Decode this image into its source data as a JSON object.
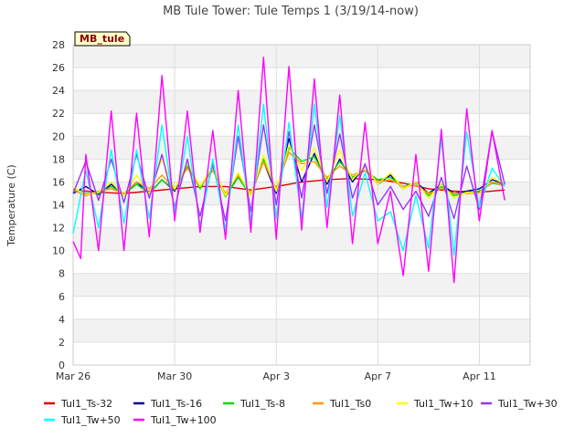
{
  "chart_data": {
    "type": "line",
    "title": "MB Tule Tower: Tule Temps 1 (3/19/14-now)",
    "xlabel": "",
    "ylabel": "Temperature (C)",
    "badge": "MB_tule",
    "x_range": [
      "2014-03-26",
      "2014-04-13"
    ],
    "x_ticks": [
      {
        "label": "Mar 26",
        "day": 0
      },
      {
        "label": "Mar 30",
        "day": 4
      },
      {
        "label": "Apr 3",
        "day": 8
      },
      {
        "label": "Apr 7",
        "day": 12
      },
      {
        "label": "Apr 11",
        "day": 16
      }
    ],
    "ylim": [
      0,
      28
    ],
    "y_ticks": [
      0,
      2,
      4,
      6,
      8,
      10,
      12,
      14,
      16,
      18,
      20,
      22,
      24,
      26,
      28
    ],
    "grid": true,
    "legend_position": "bottom",
    "series": [
      {
        "name": "Tul1_Ts-32",
        "color": "#dd0000",
        "x": [
          0,
          1,
          2,
          3,
          4,
          5,
          6,
          7,
          8,
          9,
          10,
          11,
          12,
          13,
          14,
          15,
          16,
          17
        ],
        "values": [
          15.3,
          15.1,
          15.0,
          15.2,
          15.4,
          15.6,
          15.6,
          15.3,
          15.6,
          16.0,
          16.2,
          16.3,
          16.2,
          15.9,
          15.4,
          15.2,
          15.1,
          15.3
        ]
      },
      {
        "name": "Tul1_Ts-16",
        "color": "#000099",
        "x": [
          0,
          0.5,
          1,
          1.5,
          2,
          2.5,
          3,
          3.5,
          4,
          4.5,
          5,
          5.5,
          6,
          6.5,
          7,
          7.5,
          8,
          8.5,
          9,
          9.5,
          10,
          10.5,
          11,
          11.5,
          12,
          12.5,
          13,
          13.5,
          14,
          14.5,
          15,
          15.5,
          16,
          16.5,
          17
        ],
        "values": [
          15.0,
          15.6,
          14.9,
          15.8,
          14.9,
          16.0,
          15.0,
          16.2,
          15.2,
          17.4,
          15.5,
          17.3,
          14.8,
          16.6,
          14.9,
          17.8,
          15.0,
          19.8,
          16.0,
          18.5,
          15.8,
          18.0,
          16.0,
          17.4,
          15.8,
          16.6,
          15.4,
          16.0,
          15.0,
          15.8,
          15.0,
          15.2,
          15.4,
          16.2,
          15.8
        ]
      },
      {
        "name": "Tul1_Ts-8",
        "color": "#00dd00",
        "x": [
          0,
          0.5,
          1,
          1.5,
          2,
          2.5,
          3,
          3.5,
          4,
          4.5,
          5,
          5.5,
          6,
          6.5,
          7,
          7.5,
          8,
          8.5,
          9,
          9.5,
          10,
          10.5,
          11,
          11.5,
          12,
          12.5,
          13,
          13.5,
          14,
          14.5,
          15,
          15.5,
          16,
          16.5,
          17
        ],
        "values": [
          15.4,
          15.0,
          15.0,
          15.6,
          14.9,
          15.8,
          15.0,
          16.2,
          15.3,
          17.4,
          15.4,
          17.3,
          14.7,
          16.4,
          14.8,
          18.0,
          15.2,
          19.0,
          17.8,
          18.2,
          16.2,
          17.8,
          16.4,
          17.0,
          16.2,
          16.4,
          15.6,
          15.9,
          14.8,
          15.6,
          14.8,
          15.1,
          15.2,
          15.9,
          15.7
        ]
      },
      {
        "name": "Tul1_Ts0",
        "color": "#ff9900",
        "x": [
          0,
          0.5,
          1,
          1.5,
          2,
          2.5,
          3,
          3.5,
          4,
          4.5,
          5,
          5.5,
          6,
          6.5,
          7,
          7.5,
          8,
          8.5,
          9,
          9.5,
          10,
          10.5,
          11,
          11.5,
          12,
          12.5,
          13,
          13.5,
          14,
          14.5,
          15,
          15.5,
          16,
          16.5,
          17
        ],
        "values": [
          15.3,
          14.8,
          15.2,
          15.4,
          15.0,
          16.0,
          15.4,
          16.6,
          15.4,
          17.2,
          15.6,
          17.0,
          15.0,
          16.6,
          15.0,
          17.8,
          15.4,
          18.6,
          17.6,
          17.8,
          16.4,
          17.4,
          16.6,
          17.0,
          16.0,
          16.2,
          15.6,
          15.7,
          15.0,
          15.4,
          15.0,
          15.0,
          15.0,
          16.0,
          15.7
        ]
      },
      {
        "name": "Tul1_Tw+10",
        "color": "#ffff00",
        "x": [
          0,
          0.5,
          1,
          1.5,
          2,
          2.5,
          3,
          3.5,
          4,
          4.5,
          5,
          5.5,
          6,
          6.5,
          7,
          7.5,
          8,
          8.5,
          9,
          9.5,
          10,
          10.5,
          11,
          11.5,
          12,
          12.5,
          13,
          13.5,
          14,
          14.5,
          15,
          15.5,
          16,
          16.5,
          17
        ],
        "values": [
          15.5,
          14.9,
          15.1,
          16.0,
          14.8,
          16.6,
          15.0,
          18.0,
          15.4,
          17.6,
          15.6,
          17.4,
          14.8,
          16.8,
          14.8,
          18.4,
          15.2,
          19.2,
          17.0,
          19.0,
          16.0,
          18.8,
          16.2,
          17.4,
          15.8,
          16.8,
          15.4,
          16.0,
          14.6,
          15.8,
          14.6,
          15.1,
          15.0,
          16.4,
          15.8
        ]
      },
      {
        "name": "Tul1_Tw+30",
        "color": "#9933ff",
        "x": [
          0,
          0.5,
          1,
          1.5,
          2,
          2.5,
          3,
          3.5,
          4,
          4.5,
          5,
          5.5,
          6,
          6.5,
          7,
          7.5,
          8,
          8.5,
          9,
          9.5,
          10,
          10.5,
          11,
          11.5,
          12,
          12.5,
          13,
          13.5,
          14,
          14.5,
          15,
          15.5,
          16,
          16.5,
          17
        ],
        "values": [
          15.0,
          17.8,
          14.4,
          18.0,
          14.2,
          18.4,
          14.6,
          18.4,
          13.8,
          18.0,
          13.0,
          17.6,
          12.6,
          20.0,
          13.4,
          21.0,
          14.0,
          20.4,
          14.6,
          21.0,
          15.0,
          20.2,
          14.6,
          17.6,
          14.0,
          15.6,
          13.6,
          15.2,
          13.0,
          16.4,
          12.8,
          17.4,
          13.6,
          20.4,
          15.8
        ]
      },
      {
        "name": "Tul1_Tw+50",
        "color": "#00ffff",
        "x": [
          0,
          0.5,
          1,
          1.5,
          2,
          2.5,
          3,
          3.5,
          4,
          4.5,
          5,
          5.5,
          6,
          6.5,
          7,
          7.5,
          8,
          8.5,
          9,
          9.5,
          10,
          10.5,
          11,
          11.5,
          12,
          12.5,
          13,
          13.5,
          14,
          14.5,
          15,
          15.5,
          16,
          16.5,
          17
        ],
        "values": [
          11.5,
          17.0,
          12.0,
          18.8,
          12.4,
          18.8,
          12.8,
          21.0,
          13.4,
          20.0,
          12.2,
          18.0,
          11.8,
          21.0,
          12.6,
          22.8,
          12.8,
          21.2,
          12.8,
          22.8,
          13.8,
          21.8,
          13.0,
          16.8,
          12.6,
          13.4,
          10.0,
          14.8,
          10.2,
          19.8,
          9.6,
          20.4,
          13.8,
          17.2,
          15.6
        ]
      },
      {
        "name": "Tul1_Tw+100",
        "color": "#ff00ff",
        "x": [
          0,
          0.3,
          0.5,
          1,
          1.5,
          2,
          2.5,
          3,
          3.5,
          4,
          4.5,
          5,
          5.5,
          6,
          6.5,
          7,
          7.5,
          8,
          8.5,
          9,
          9.5,
          10,
          10.5,
          11,
          11.5,
          12,
          12.5,
          13,
          13.5,
          14,
          14.5,
          15,
          15.5,
          16,
          16.5,
          17
        ],
        "values": [
          10.8,
          9.3,
          18.4,
          10.0,
          22.2,
          10.0,
          22.0,
          11.2,
          25.3,
          12.6,
          22.2,
          11.6,
          20.5,
          11.0,
          24.0,
          11.6,
          26.9,
          11.0,
          26.1,
          11.8,
          25.0,
          12.0,
          23.6,
          10.6,
          21.2,
          10.6,
          15.2,
          7.8,
          18.4,
          8.2,
          20.6,
          7.2,
          22.4,
          12.6,
          20.5,
          14.4
        ]
      }
    ]
  }
}
